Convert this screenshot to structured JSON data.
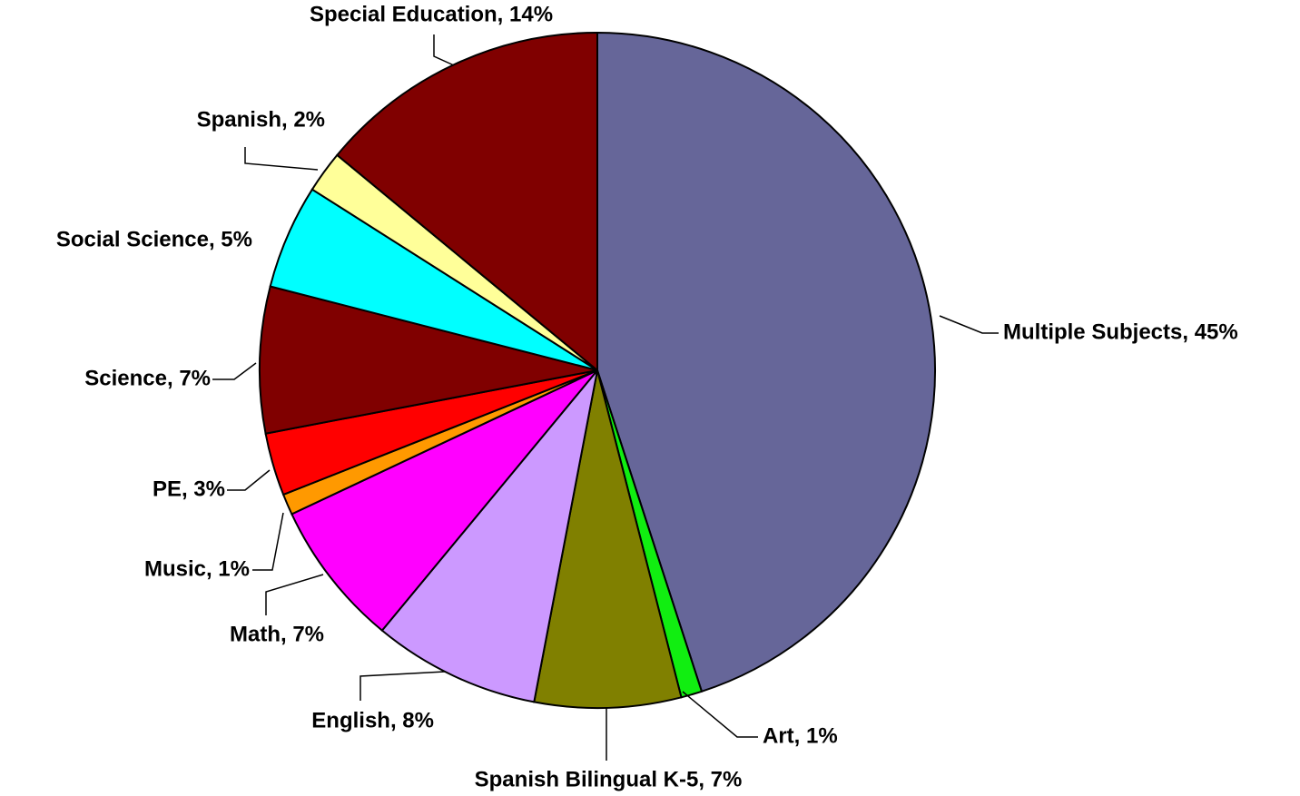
{
  "chart_data": {
    "type": "pie",
    "categories": [
      "Multiple Subjects, 45%",
      "Art, 1%",
      "Spanish Bilingual K-5, 7%",
      "English, 8%",
      "Math, 7%",
      "Music, 1%",
      "PE, 3%",
      "Science, 7%",
      "Social Science, 5%",
      "Spanish, 2%",
      "Special Education, 14%"
    ],
    "values": [
      45,
      1,
      7,
      8,
      7,
      1,
      3,
      7,
      5,
      2,
      14
    ],
    "colors": [
      "#666699",
      "#11ee11",
      "#808000",
      "#cc99ff",
      "#ff00ff",
      "#ff9900",
      "#ff0000",
      "#800000",
      "#00ffff",
      "#ffff99",
      "#800000"
    ]
  }
}
